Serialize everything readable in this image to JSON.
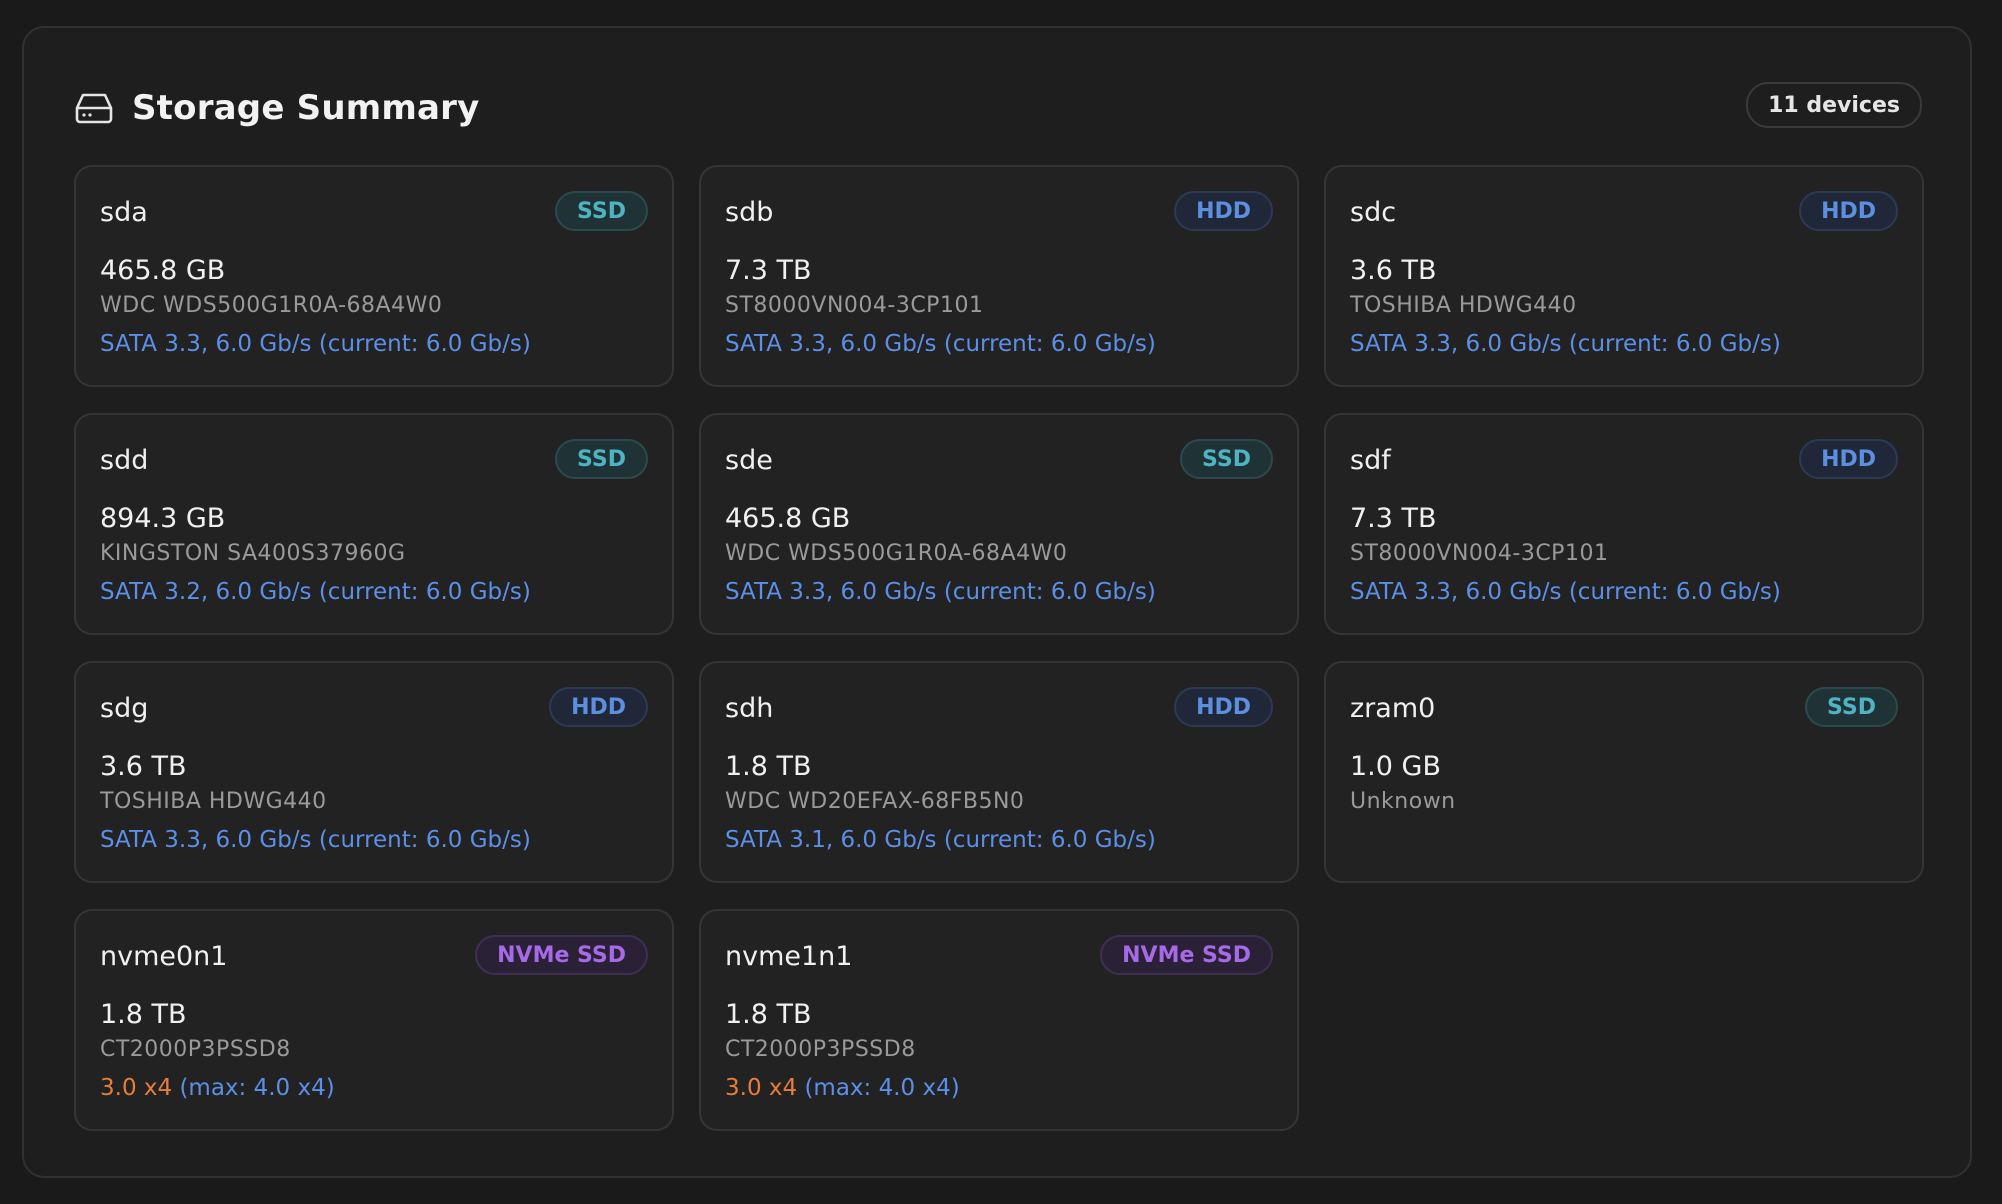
{
  "header": {
    "title": "Storage Summary",
    "device_count": "11 devices",
    "icon": "hard-drive-icon"
  },
  "colors": {
    "ssd": "#4fb3c4",
    "hdd": "#5b8fe0",
    "nvme": "#a66ae8",
    "link": "#5b8fe8",
    "pcie_current": "#e87d3a"
  },
  "devices": [
    {
      "name": "sda",
      "type": "SSD",
      "capacity": "465.8 GB",
      "model": "WDC WDS500G1R0A-68A4W0",
      "link": "SATA 3.3, 6.0 Gb/s (current: 6.0 Gb/s)"
    },
    {
      "name": "sdb",
      "type": "HDD",
      "capacity": "7.3 TB",
      "model": "ST8000VN004-3CP101",
      "link": "SATA 3.3, 6.0 Gb/s (current: 6.0 Gb/s)"
    },
    {
      "name": "sdc",
      "type": "HDD",
      "capacity": "3.6 TB",
      "model": "TOSHIBA HDWG440",
      "link": "SATA 3.3, 6.0 Gb/s (current: 6.0 Gb/s)"
    },
    {
      "name": "sdd",
      "type": "SSD",
      "capacity": "894.3 GB",
      "model": "KINGSTON SA400S37960G",
      "link": "SATA 3.2, 6.0 Gb/s (current: 6.0 Gb/s)"
    },
    {
      "name": "sde",
      "type": "SSD",
      "capacity": "465.8 GB",
      "model": "WDC WDS500G1R0A-68A4W0",
      "link": "SATA 3.3, 6.0 Gb/s (current: 6.0 Gb/s)"
    },
    {
      "name": "sdf",
      "type": "HDD",
      "capacity": "7.3 TB",
      "model": "ST8000VN004-3CP101",
      "link": "SATA 3.3, 6.0 Gb/s (current: 6.0 Gb/s)"
    },
    {
      "name": "sdg",
      "type": "HDD",
      "capacity": "3.6 TB",
      "model": "TOSHIBA HDWG440",
      "link": "SATA 3.3, 6.0 Gb/s (current: 6.0 Gb/s)"
    },
    {
      "name": "sdh",
      "type": "HDD",
      "capacity": "1.8 TB",
      "model": "WDC WD20EFAX-68FB5N0",
      "link": "SATA 3.1, 6.0 Gb/s (current: 6.0 Gb/s)"
    },
    {
      "name": "zram0",
      "type": "SSD",
      "capacity": "1.0 GB",
      "model": "Unknown",
      "link": ""
    },
    {
      "name": "nvme0n1",
      "type": "NVMe SSD",
      "capacity": "1.8 TB",
      "model": "CT2000P3PSSD8",
      "link_current": "3.0 x4",
      "link_max": "(max: 4.0 x4)"
    },
    {
      "name": "nvme1n1",
      "type": "NVMe SSD",
      "capacity": "1.8 TB",
      "model": "CT2000P3PSSD8",
      "link_current": "3.0 x4",
      "link_max": "(max: 4.0 x4)"
    }
  ]
}
